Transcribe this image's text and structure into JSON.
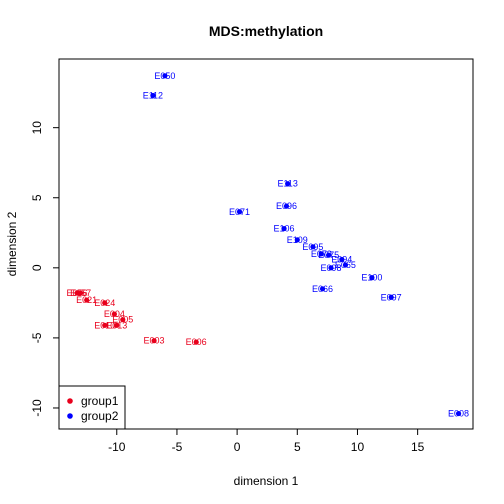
{
  "chart_data": {
    "type": "scatter",
    "title": "MDS:methylation",
    "xlabel": "dimension 1",
    "ylabel": "dimension 2",
    "xlim": [
      -14.8,
      19.6
    ],
    "ylim": [
      -11.5,
      14.9
    ],
    "x_ticks": [
      -10,
      -5,
      0,
      5,
      10,
      15
    ],
    "y_ticks": [
      -10,
      -5,
      0,
      5,
      10
    ],
    "grid": false,
    "legend_position": "bottom-left",
    "legend": [
      {
        "name": "group1",
        "color": "#e8001c"
      },
      {
        "name": "group2",
        "color": "#0000ff"
      }
    ],
    "series": [
      {
        "name": "group1",
        "color": "#e8001c",
        "points": [
          {
            "x": -13.3,
            "y": -1.8,
            "label": "E056"
          },
          {
            "x": -13.0,
            "y": -1.8,
            "label": "E057"
          },
          {
            "x": -12.5,
            "y": -2.3,
            "label": "E021"
          },
          {
            "x": -11.0,
            "y": -2.5,
            "label": "E024"
          },
          {
            "x": -10.2,
            "y": -3.3,
            "label": "E004"
          },
          {
            "x": -9.5,
            "y": -3.7,
            "label": "E005"
          },
          {
            "x": -11.0,
            "y": -4.1,
            "label": "E010"
          },
          {
            "x": -10.0,
            "y": -4.1,
            "label": "E013"
          },
          {
            "x": -6.9,
            "y": -5.2,
            "label": "E003"
          },
          {
            "x": -3.4,
            "y": -5.3,
            "label": "E006"
          }
        ]
      },
      {
        "name": "group2",
        "color": "#0000ff",
        "points": [
          {
            "x": -6.0,
            "y": 13.7,
            "label": "E050"
          },
          {
            "x": -7.0,
            "y": 12.3,
            "label": "E112"
          },
          {
            "x": 0.2,
            "y": 4.0,
            "label": "E071"
          },
          {
            "x": 4.2,
            "y": 6.0,
            "label": "E113"
          },
          {
            "x": 4.1,
            "y": 4.4,
            "label": "E096"
          },
          {
            "x": 3.9,
            "y": 2.8,
            "label": "E106"
          },
          {
            "x": 5.0,
            "y": 2.0,
            "label": "E109"
          },
          {
            "x": 6.3,
            "y": 1.5,
            "label": "E095"
          },
          {
            "x": 7.0,
            "y": 1.0,
            "label": "E079"
          },
          {
            "x": 7.6,
            "y": 0.9,
            "label": "E075"
          },
          {
            "x": 8.7,
            "y": 0.6,
            "label": "E094"
          },
          {
            "x": 9.0,
            "y": 0.2,
            "label": "E065"
          },
          {
            "x": 7.8,
            "y": 0.0,
            "label": "E098"
          },
          {
            "x": 11.2,
            "y": -0.7,
            "label": "E100"
          },
          {
            "x": 7.1,
            "y": -1.5,
            "label": "E066"
          },
          {
            "x": 12.8,
            "y": -2.1,
            "label": "E097"
          },
          {
            "x": 18.4,
            "y": -10.4,
            "label": "E008"
          }
        ]
      }
    ]
  }
}
